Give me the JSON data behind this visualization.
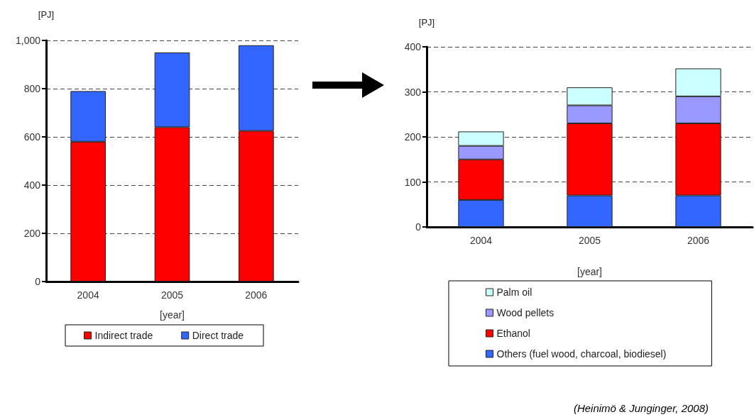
{
  "chart_data": [
    {
      "type": "bar",
      "stacked": true,
      "ylabel": "[PJ]",
      "xlabel": "[year]",
      "categories": [
        "2004",
        "2005",
        "2006"
      ],
      "series": [
        {
          "name": "Indirect trade",
          "color": "#ff0000",
          "values": [
            580,
            640,
            625
          ]
        },
        {
          "name": "Direct trade",
          "color": "#3366ff",
          "values": [
            210,
            310,
            355
          ]
        }
      ],
      "ylim": [
        0,
        1000
      ],
      "yticks": [
        0,
        200,
        400,
        600,
        800,
        {
          "value": 1000,
          "label": "1,000"
        }
      ],
      "grid": "y",
      "legend": "bottom"
    },
    {
      "type": "bar",
      "stacked": true,
      "ylabel": "[PJ]",
      "xlabel": "[year]",
      "categories": [
        "2004",
        "2005",
        "2006"
      ],
      "series": [
        {
          "name": "Others (fuel wood, charcoal, biodiesel)",
          "color": "#3366ff",
          "values": [
            60,
            70,
            70
          ]
        },
        {
          "name": "Ethanol",
          "color": "#ff0000",
          "values": [
            90,
            160,
            160
          ]
        },
        {
          "name": "Wood pellets",
          "color": "#9999ff",
          "values": [
            30,
            40,
            60
          ]
        },
        {
          "name": "Palm oil",
          "color": "#ccffff",
          "values": [
            32,
            40,
            62
          ]
        }
      ],
      "ylim": [
        0,
        400
      ],
      "yticks": [
        0,
        100,
        200,
        300,
        400
      ],
      "grid": "y",
      "legend": "bottom",
      "annotations": [
        "(Heinimö & Junginger, 2008)"
      ]
    }
  ]
}
